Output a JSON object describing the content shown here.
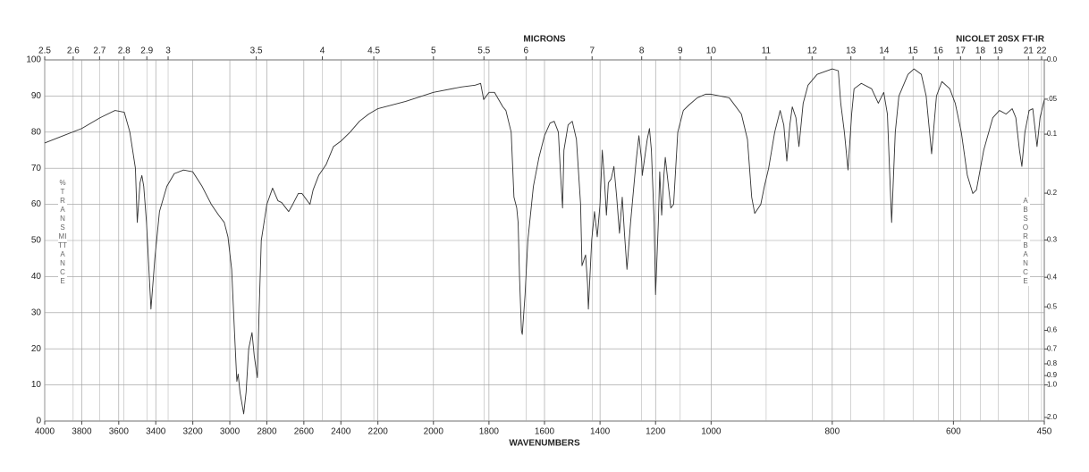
{
  "chart_data": {
    "type": "line",
    "annotation": "NICOLET 20SX FT-IR",
    "x_label": "WAVENUMBERS",
    "x2_label": "MICRONS",
    "y_label": "%TRANSMITTANCE",
    "y2_label": "ABSORBANCE",
    "color": "#333333",
    "grid": true,
    "xlim": [
      4000,
      450
    ],
    "xbreaks": [
      2200,
      1000
    ],
    "xticks": [
      4000,
      3800,
      3600,
      3400,
      3200,
      3000,
      2800,
      2600,
      2400,
      2200,
      2000,
      1800,
      1600,
      1400,
      1200,
      1000,
      800,
      600,
      450
    ],
    "x2ticks": [
      2.5,
      2.6,
      2.7,
      2.8,
      2.9,
      3,
      3.5,
      4,
      4.5,
      5,
      5.5,
      6,
      7,
      8,
      9,
      10,
      11,
      12,
      13,
      14,
      15,
      16,
      17,
      18,
      19,
      21,
      22
    ],
    "ylim": [
      0,
      100
    ],
    "yticks": [
      0,
      10,
      20,
      30,
      40,
      50,
      60,
      70,
      80,
      90,
      100
    ],
    "y2ticks": [
      {
        "value": 0,
        "label": "0.0"
      },
      {
        "value": 0.05,
        "label": ".05"
      },
      0.1,
      0.2,
      0.3,
      0.4,
      0.5,
      0.6,
      0.7,
      0.8,
      0.9,
      {
        "value": 1,
        "label": "1.0"
      },
      {
        "value": 2,
        "label": "2.0"
      }
    ],
    "x": [
      4000,
      3900,
      3800,
      3700,
      3620,
      3570,
      3540,
      3510,
      3500,
      3485,
      3475,
      3465,
      3450,
      3435,
      3426,
      3405,
      3380,
      3340,
      3300,
      3250,
      3200,
      3150,
      3100,
      3060,
      3030,
      3010,
      2990,
      2975,
      2962,
      2955,
      2945,
      2925,
      2912,
      2898,
      2880,
      2868,
      2851,
      2842,
      2830,
      2800,
      2769,
      2740,
      2720,
      2682,
      2660,
      2630,
      2610,
      2567,
      2550,
      2520,
      2480,
      2440,
      2400,
      2350,
      2300,
      2250,
      2200,
      2100,
      2000,
      1900,
      1850,
      1830,
      1819,
      1800,
      1780,
      1750,
      1739,
      1720,
      1710,
      1700,
      1695,
      1690,
      1683,
      1680,
      1670,
      1660,
      1640,
      1620,
      1600,
      1580,
      1565,
      1550,
      1542,
      1535,
      1530,
      1515,
      1500,
      1485,
      1470,
      1465,
      1452,
      1445,
      1442,
      1430,
      1420,
      1410,
      1400,
      1392,
      1385,
      1377,
      1370,
      1360,
      1350,
      1340,
      1330,
      1320,
      1312,
      1303,
      1290,
      1270,
      1260,
      1250,
      1248,
      1230,
      1222,
      1215,
      1205,
      1200,
      1190,
      1185,
      1178,
      1170,
      1165,
      1155,
      1145,
      1135,
      1120,
      1100,
      1080,
      1050,
      1020,
      1000,
      970,
      950,
      940,
      933,
      928,
      918,
      912,
      905,
      895,
      886,
      880,
      875,
      870,
      866,
      860,
      855,
      848,
      840,
      825,
      800,
      790,
      786,
      780,
      774,
      768,
      764,
      752,
      735,
      724,
      715,
      709,
      702,
      696,
      690,
      675,
      665,
      653,
      645,
      636,
      628,
      619,
      606,
      597,
      587,
      577,
      568,
      562,
      550,
      535,
      524,
      513,
      503,
      497,
      491,
      487,
      482,
      475,
      469,
      462,
      457,
      450
    ],
    "values": [
      77,
      79,
      81,
      84,
      86,
      85.5,
      80,
      70,
      55,
      66,
      68,
      65,
      55,
      40,
      31,
      45,
      58,
      65,
      68.5,
      69.5,
      69,
      65,
      60,
      57,
      55,
      51,
      42,
      25,
      11,
      13,
      8,
      2,
      8,
      20,
      24.5,
      18,
      12,
      30,
      50,
      60,
      64.5,
      61,
      60.5,
      58,
      60,
      63,
      63,
      60,
      64,
      68,
      71,
      76,
      77.5,
      80,
      83,
      85,
      86.5,
      88.5,
      91,
      92.5,
      93,
      93.5,
      89,
      91,
      91,
      87,
      86,
      80,
      62,
      59,
      55,
      40,
      25,
      24,
      35,
      50,
      65,
      73,
      79,
      82.5,
      83,
      80,
      68,
      59,
      75,
      82,
      83,
      78,
      60,
      43,
      46,
      38,
      31,
      50,
      58,
      51,
      60,
      75,
      68,
      57,
      66,
      67,
      70.5,
      62,
      52,
      62,
      52,
      42,
      55,
      72,
      79,
      72,
      68,
      78,
      81,
      75,
      55,
      35,
      55,
      69,
      57,
      68,
      73,
      66,
      59,
      60,
      80,
      86,
      87.5,
      89.5,
      90.5,
      90.5,
      89.5,
      85,
      78,
      62,
      57.5,
      60,
      65,
      70,
      80,
      86,
      82,
      72,
      82,
      87,
      84,
      76,
      88,
      93,
      96,
      97.5,
      97,
      88,
      80,
      69.5,
      85,
      92,
      93.5,
      92,
      88,
      91,
      85,
      55,
      80,
      90,
      96,
      97.5,
      96,
      90,
      74,
      90,
      94,
      92,
      88,
      80,
      68,
      63,
      64,
      75,
      84,
      86,
      85,
      86.5,
      84,
      75,
      70.5,
      80,
      86,
      86.5,
      76,
      84,
      89
    ]
  }
}
